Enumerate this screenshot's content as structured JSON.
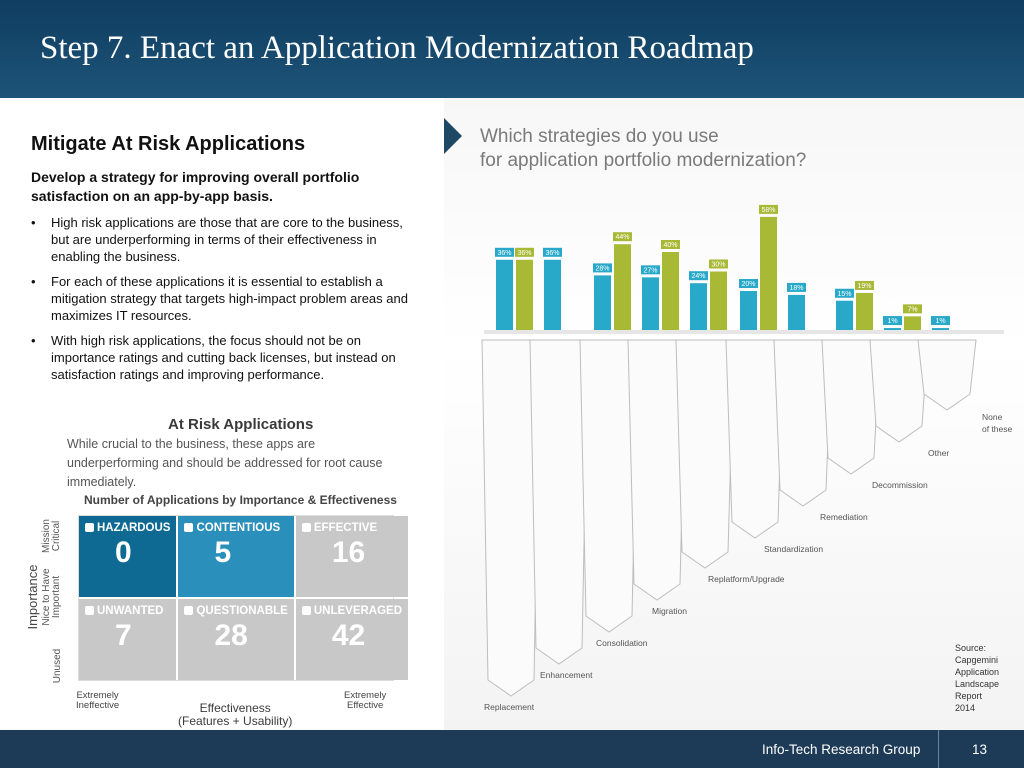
{
  "title": "Step 7. Enact an Application Modernization Roadmap",
  "left": {
    "heading": "Mitigate At Risk Applications",
    "subheading": "Develop a strategy for improving overall portfolio satisfaction on an app-by-app basis.",
    "bullets": [
      "High risk applications are those that are core to the business, but are underperforming in terms of their effectiveness in enabling the business.",
      "For each of these applications it is essential to establish a mitigation strategy that targets high-impact problem areas and maximizes IT resources.",
      "With high risk applications, the focus should not be on importance ratings and cutting back licenses, but instead on satisfaction ratings and improving performance."
    ]
  },
  "risk": {
    "title": "At Risk Applications",
    "description": "While crucial to the business, these apps are underperforming and should be addressed for root cause immediately.",
    "grid_title": "Number of Applications by Importance & Effectiveness",
    "cells": [
      {
        "label": "HAZARDOUS",
        "value": "0",
        "icon": "flame-icon"
      },
      {
        "label": "CONTENTIOUS",
        "value": "5",
        "icon": "user-icon"
      },
      {
        "label": "EFFECTIVE",
        "value": "16",
        "icon": "check-icon"
      },
      {
        "label": "UNWANTED",
        "value": "7",
        "icon": "trash-icon"
      },
      {
        "label": "QUESTIONABLE",
        "value": "28",
        "icon": "question-icon"
      },
      {
        "label": "UNLEVERAGED",
        "value": "42",
        "icon": "dollar-icon"
      }
    ],
    "y_axis": "Importance",
    "y_levels": [
      "Mission Critical",
      "Nice to Have  Important",
      "Unused"
    ],
    "x_left": "Extremely\nIneffective",
    "x_mid": "Effectiveness\n(Features + Usability)",
    "x_right": "Extremely\nEffective"
  },
  "chart_data": {
    "type": "bar",
    "title": "Which strategies do you use",
    "subtitle": "for application portfolio modernization?",
    "categories": [
      "Replacement",
      "Enhancement",
      "Consolidation",
      "Migration",
      "Replatform/Upgrade",
      "Standardization",
      "Remediation",
      "Decommission",
      "Other",
      "None of these"
    ],
    "series": [
      {
        "color": "#29a9c9",
        "values": [
          36,
          36,
          28,
          27,
          24,
          20,
          18,
          15,
          1,
          1
        ]
      },
      {
        "color": "#a8b936",
        "values": [
          36,
          null,
          44,
          40,
          30,
          58,
          null,
          19,
          7,
          null
        ]
      }
    ],
    "value_suffix": "%",
    "source": "Source: Capgemini Application Landscape Report 2014",
    "colors": {
      "blue": "#29a9c9",
      "olive": "#a8b936"
    }
  },
  "footer": {
    "company": "Info-Tech Research Group",
    "page": "13"
  },
  "colors": {
    "header": "#1a4b6e",
    "footer": "#1d3a56",
    "hazardous": "#0e6a93",
    "contentious": "#2a8fbb"
  }
}
